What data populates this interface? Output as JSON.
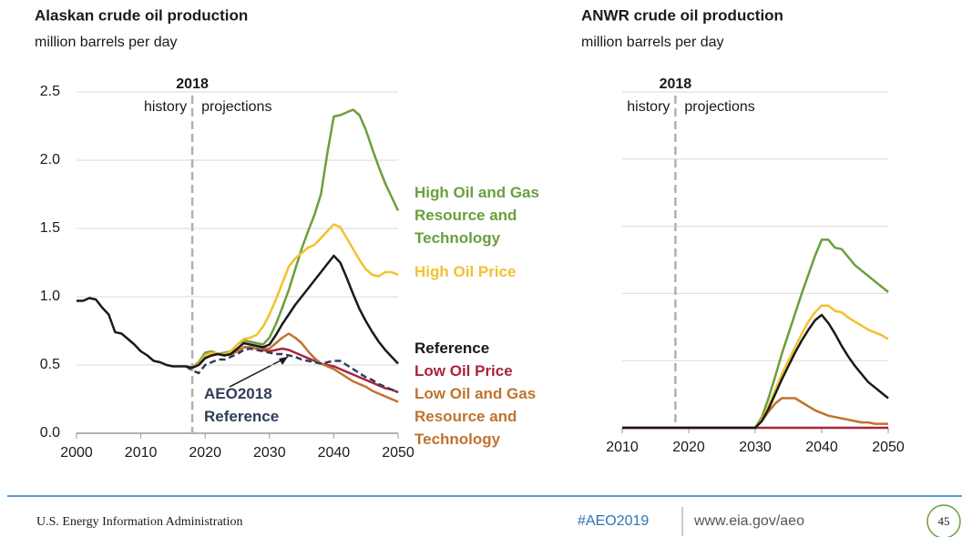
{
  "chart_data": [
    {
      "type": "line",
      "title": "Alaskan crude oil production",
      "subtitle": "million barrels per day",
      "x": [
        2000,
        2001,
        2002,
        2003,
        2004,
        2005,
        2006,
        2007,
        2008,
        2009,
        2010,
        2011,
        2012,
        2013,
        2014,
        2015,
        2016,
        2017,
        2018,
        2019,
        2020,
        2021,
        2022,
        2023,
        2024,
        2025,
        2026,
        2027,
        2028,
        2029,
        2030,
        2031,
        2032,
        2033,
        2034,
        2035,
        2036,
        2037,
        2038,
        2039,
        2040,
        2041,
        2042,
        2043,
        2044,
        2045,
        2046,
        2047,
        2048,
        2049,
        2050
      ],
      "xlim": [
        2000,
        2050
      ],
      "xticks": [
        2000,
        2010,
        2020,
        2030,
        2040,
        2050
      ],
      "ylim": [
        0,
        2.5
      ],
      "yticks": [
        {
          "value": 0,
          "label": "0.0"
        },
        0.5,
        {
          "value": 1,
          "label": "1.0"
        },
        1.5,
        {
          "value": 2,
          "label": "2.0"
        },
        2.5
      ],
      "grid": true,
      "ytick_labels": true,
      "divider": 2018,
      "history_label": "history",
      "projections_label": "projections",
      "series": [
        {
          "name": "High Oil and Gas Resource and Technology",
          "color": "#6a9f3c",
          "dashed": false,
          "values": [
            null,
            null,
            null,
            null,
            null,
            null,
            null,
            null,
            null,
            null,
            null,
            null,
            null,
            null,
            null,
            null,
            null,
            null,
            0.48,
            0.52,
            0.59,
            0.6,
            0.58,
            0.59,
            0.6,
            0.65,
            0.68,
            0.67,
            0.66,
            0.65,
            0.7,
            0.8,
            0.92,
            1.05,
            1.2,
            1.35,
            1.48,
            1.6,
            1.75,
            2.05,
            2.32,
            2.33,
            2.35,
            2.37,
            2.33,
            2.22,
            2.08,
            1.95,
            1.83,
            1.73,
            1.63
          ]
        },
        {
          "name": "High Oil Price",
          "color": "#f2c12e",
          "dashed": false,
          "values": [
            null,
            null,
            null,
            null,
            null,
            null,
            null,
            null,
            null,
            null,
            null,
            null,
            null,
            null,
            null,
            null,
            null,
            null,
            0.48,
            0.51,
            0.57,
            0.59,
            0.58,
            0.58,
            0.6,
            0.65,
            0.69,
            0.7,
            0.72,
            0.78,
            0.87,
            0.98,
            1.1,
            1.22,
            1.28,
            1.32,
            1.36,
            1.38,
            1.43,
            1.48,
            1.53,
            1.51,
            1.43,
            1.35,
            1.27,
            1.2,
            1.16,
            1.15,
            1.18,
            1.18,
            1.16
          ]
        },
        {
          "name": "Low Oil Price",
          "color": "#a8243e",
          "dashed": false,
          "values": [
            null,
            null,
            null,
            null,
            null,
            null,
            null,
            null,
            null,
            null,
            null,
            null,
            null,
            null,
            null,
            null,
            null,
            null,
            0.48,
            0.5,
            0.55,
            0.57,
            0.58,
            0.57,
            0.58,
            0.6,
            0.63,
            0.63,
            0.62,
            0.61,
            0.6,
            0.61,
            0.62,
            0.61,
            0.59,
            0.57,
            0.55,
            0.53,
            0.51,
            0.5,
            0.49,
            0.47,
            0.45,
            0.43,
            0.41,
            0.39,
            0.37,
            0.35,
            0.33,
            0.32,
            0.3
          ]
        },
        {
          "name": "Low Oil and Gas Resource and Technology",
          "color": "#c0722f",
          "dashed": false,
          "values": [
            null,
            null,
            null,
            null,
            null,
            null,
            null,
            null,
            null,
            null,
            null,
            null,
            null,
            null,
            null,
            null,
            null,
            null,
            0.48,
            0.5,
            0.55,
            0.57,
            0.58,
            0.57,
            0.58,
            0.6,
            0.63,
            0.63,
            0.62,
            0.62,
            0.62,
            0.66,
            0.7,
            0.73,
            0.7,
            0.66,
            0.6,
            0.55,
            0.51,
            0.49,
            0.47,
            0.44,
            0.41,
            0.38,
            0.36,
            0.34,
            0.31,
            0.29,
            0.27,
            0.25,
            0.23
          ]
        },
        {
          "name": "AEO2018 Reference",
          "color": "#2f3e5a",
          "dashed": true,
          "values": [
            null,
            null,
            null,
            null,
            null,
            null,
            null,
            null,
            null,
            null,
            null,
            null,
            null,
            null,
            null,
            null,
            null,
            0.49,
            0.46,
            0.44,
            0.5,
            0.52,
            0.54,
            0.54,
            0.56,
            0.58,
            0.61,
            0.62,
            0.61,
            0.6,
            0.59,
            0.58,
            0.58,
            0.57,
            0.56,
            0.54,
            0.53,
            0.52,
            0.51,
            0.52,
            0.53,
            0.53,
            0.5,
            0.47,
            0.44,
            0.41,
            0.39,
            0.36,
            0.34,
            0.32,
            0.3
          ]
        },
        {
          "name": "Reference",
          "color": "#1a1a1a",
          "dashed": false,
          "values": [
            0.97,
            0.97,
            0.99,
            0.98,
            0.92,
            0.87,
            0.74,
            0.73,
            0.69,
            0.65,
            0.6,
            0.57,
            0.53,
            0.52,
            0.5,
            0.49,
            0.49,
            0.49,
            0.48,
            0.5,
            0.55,
            0.57,
            0.58,
            0.57,
            0.58,
            0.62,
            0.66,
            0.65,
            0.64,
            0.63,
            0.65,
            0.72,
            0.8,
            0.87,
            0.94,
            1.0,
            1.06,
            1.12,
            1.18,
            1.24,
            1.3,
            1.25,
            1.14,
            1.02,
            0.91,
            0.82,
            0.74,
            0.67,
            0.61,
            0.56,
            0.51
          ]
        }
      ]
    },
    {
      "type": "line",
      "title": "ANWR crude oil production",
      "subtitle": "million barrels per day",
      "x": [
        2010,
        2011,
        2012,
        2013,
        2014,
        2015,
        2016,
        2017,
        2018,
        2019,
        2020,
        2021,
        2022,
        2023,
        2024,
        2025,
        2026,
        2027,
        2028,
        2029,
        2030,
        2031,
        2032,
        2033,
        2034,
        2035,
        2036,
        2037,
        2038,
        2039,
        2040,
        2041,
        2042,
        2043,
        2044,
        2045,
        2046,
        2047,
        2048,
        2049,
        2050
      ],
      "xlim": [
        2010,
        2050
      ],
      "xticks": [
        2010,
        2020,
        2030,
        2040,
        2050
      ],
      "ylim": [
        0,
        2.5
      ],
      "yticks": [
        0,
        0.5,
        1,
        1.5,
        2,
        2.5
      ],
      "grid": true,
      "ytick_labels": false,
      "divider": 2018,
      "history_label": "history",
      "projections_label": "projections",
      "series": [
        {
          "color": "#6a9f3c",
          "dashed": false,
          "values": [
            0,
            0,
            0,
            0,
            0,
            0,
            0,
            0,
            0,
            0,
            0,
            0,
            0,
            0,
            0,
            0,
            0,
            0,
            0,
            0,
            0,
            0.08,
            0.22,
            0.38,
            0.55,
            0.7,
            0.85,
            1.0,
            1.14,
            1.28,
            1.4,
            1.4,
            1.34,
            1.33,
            1.27,
            1.21,
            1.17,
            1.13,
            1.09,
            1.05,
            1.01
          ]
        },
        {
          "color": "#f2c12e",
          "dashed": false,
          "values": [
            0,
            0,
            0,
            0,
            0,
            0,
            0,
            0,
            0,
            0,
            0,
            0,
            0,
            0,
            0,
            0,
            0,
            0,
            0,
            0,
            0,
            0.06,
            0.16,
            0.28,
            0.4,
            0.5,
            0.6,
            0.7,
            0.79,
            0.86,
            0.91,
            0.91,
            0.87,
            0.86,
            0.82,
            0.79,
            0.76,
            0.73,
            0.71,
            0.69,
            0.66
          ]
        },
        {
          "color": "#c0722f",
          "dashed": false,
          "values": [
            0,
            0,
            0,
            0,
            0,
            0,
            0,
            0,
            0,
            0,
            0,
            0,
            0,
            0,
            0,
            0,
            0,
            0,
            0,
            0,
            0,
            0.05,
            0.12,
            0.18,
            0.22,
            0.22,
            0.22,
            0.19,
            0.16,
            0.13,
            0.11,
            0.09,
            0.08,
            0.07,
            0.06,
            0.05,
            0.04,
            0.04,
            0.03,
            0.03,
            0.03
          ]
        },
        {
          "color": "#a8243e",
          "dashed": false,
          "values": [
            0,
            0,
            0,
            0,
            0,
            0,
            0,
            0,
            0,
            0,
            0,
            0,
            0,
            0,
            0,
            0,
            0,
            0,
            0,
            0,
            0,
            0,
            0,
            0,
            0,
            0,
            0,
            0,
            0,
            0,
            0,
            0,
            0,
            0,
            0,
            0,
            0,
            0,
            0,
            0,
            0
          ]
        },
        {
          "color": "#1a1a1a",
          "dashed": false,
          "values": [
            0,
            0,
            0,
            0,
            0,
            0,
            0,
            0,
            0,
            0,
            0,
            0,
            0,
            0,
            0,
            0,
            0,
            0,
            0,
            0,
            0,
            0.05,
            0.14,
            0.25,
            0.36,
            0.46,
            0.56,
            0.65,
            0.73,
            0.8,
            0.84,
            0.78,
            0.7,
            0.61,
            0.53,
            0.46,
            0.4,
            0.34,
            0.3,
            0.26,
            0.22
          ]
        }
      ]
    }
  ],
  "footer": {
    "organization": "U.S. Energy Information Administration",
    "hashtag": "#AEO2019",
    "url": "www.eia.gov/aeo",
    "page": "45"
  }
}
